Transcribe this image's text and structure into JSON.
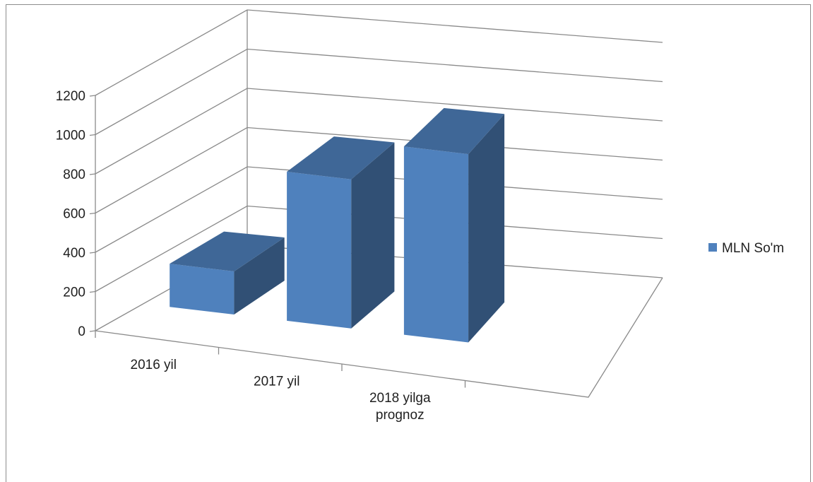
{
  "chart_data": {
    "type": "bar",
    "categories": [
      "2016 yil",
      "2017 yil",
      "2018 yilga prognoz"
    ],
    "category_lines": [
      [
        "2016 yil"
      ],
      [
        "2017 yil"
      ],
      [
        "2018 yilga",
        "prognoz"
      ]
    ],
    "series": [
      {
        "name": "MLN So'm",
        "values": [
          220,
          760,
          960
        ],
        "color": "#4f81bd"
      }
    ],
    "title": "",
    "xlabel": "",
    "ylabel": "",
    "ylim": [
      0,
      1200
    ],
    "yticks": [
      0,
      200,
      400,
      600,
      800,
      1000,
      1200
    ],
    "grid": true,
    "legend_position": "right",
    "style": "3d-column"
  }
}
